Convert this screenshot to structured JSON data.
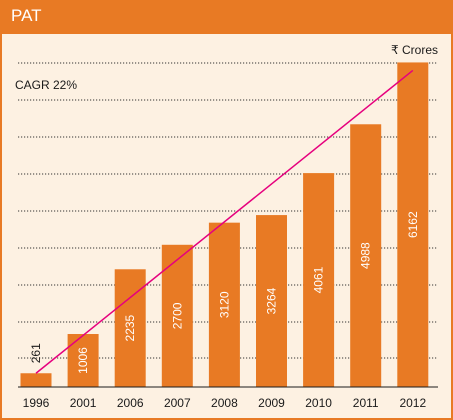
{
  "header": {
    "title": "PAT"
  },
  "chart_data": {
    "type": "bar",
    "title": "PAT",
    "unit_label": "₹ Crores",
    "annotation": "CAGR 22%",
    "categories": [
      "1996",
      "2001",
      "2006",
      "2007",
      "2008",
      "2009",
      "2010",
      "2011",
      "2012"
    ],
    "values": [
      261,
      1006,
      2235,
      2700,
      3120,
      3264,
      4061,
      4988,
      6162
    ],
    "ylim": [
      0,
      6550
    ],
    "trendline": {
      "from_category": "1996",
      "to_category": "2012"
    },
    "grid": true,
    "colors": {
      "bar": "#e87a24",
      "trend": "#e6007e",
      "background": "#fdf1e2",
      "header": "#e87a24"
    }
  }
}
